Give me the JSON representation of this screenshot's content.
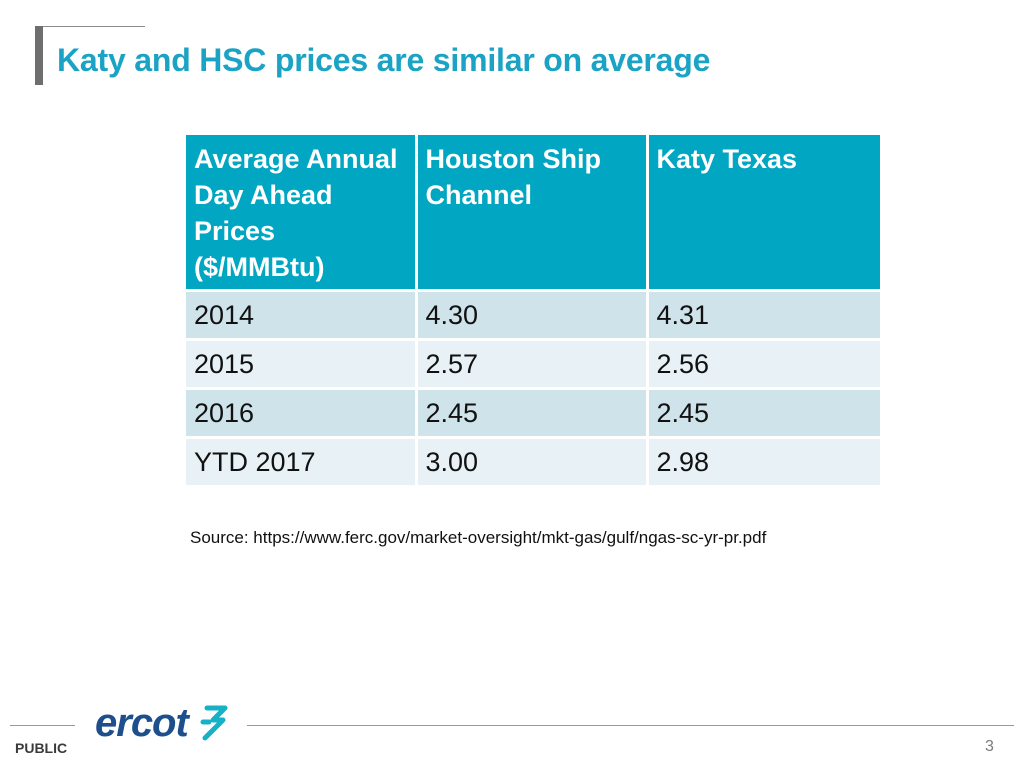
{
  "slide": {
    "title": "Katy and HSC prices are similar on average",
    "source": "Source: https://www.ferc.gov/market-oversight/mkt-gas/gulf/ngas-sc-yr-pr.pdf"
  },
  "table": {
    "headers": [
      "Average Annual Day Ahead Prices ($/MMBtu)",
      "Houston Ship Channel",
      "Katy Texas"
    ],
    "rows": [
      [
        "2014",
        "4.30",
        "4.31"
      ],
      [
        "2015",
        "2.57",
        "2.56"
      ],
      [
        "2016",
        "2.45",
        "2.45"
      ],
      [
        "YTD 2017",
        "3.00",
        "2.98"
      ]
    ]
  },
  "footer": {
    "logo_text": "ercot",
    "classification": "PUBLIC",
    "page_number": "3"
  },
  "colors": {
    "title": "#1aa3c4",
    "header_bg": "#00a6c2",
    "row_odd": "#cfe3ea",
    "row_even": "#e8f1f5",
    "logo_blue": "#1d4f8c",
    "logo_teal": "#15b2c7"
  }
}
